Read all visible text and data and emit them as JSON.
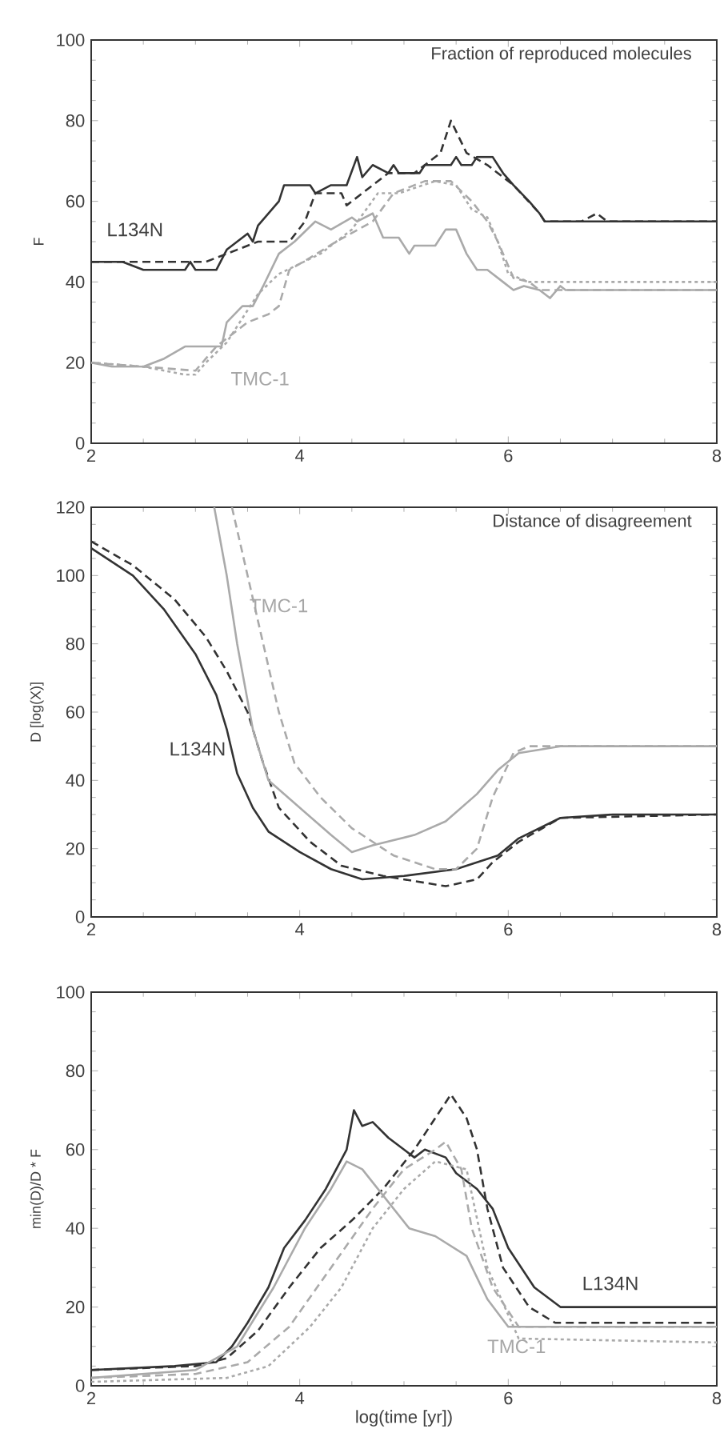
{
  "chart_data": [
    {
      "type": "line",
      "title": "Fraction of reproduced molecules",
      "ylabel": "F",
      "xlim": [
        2,
        8
      ],
      "xticks": [
        2,
        4,
        6,
        8
      ],
      "ylim": [
        0,
        100
      ],
      "yticks": [
        0,
        20,
        40,
        60,
        80,
        100
      ],
      "annotations": [
        "L134N",
        "TMC-1"
      ],
      "series": [
        {
          "color": "#333333",
          "line_style": "solid",
          "x": [
            2,
            2.3,
            2.5,
            2.9,
            2.95,
            3.0,
            3.2,
            3.3,
            3.4,
            3.5,
            3.55,
            3.6,
            3.7,
            3.8,
            3.85,
            4.1,
            4.15,
            4.3,
            4.45,
            4.55,
            4.6,
            4.7,
            4.85,
            4.9,
            4.95,
            5.15,
            5.2,
            5.45,
            5.5,
            5.55,
            5.65,
            5.7,
            5.85,
            5.95,
            6.05,
            6.2,
            6.3,
            6.35,
            8
          ],
          "values": [
            45,
            45,
            43,
            43,
            45,
            43,
            43,
            48,
            50,
            52,
            50,
            54,
            57,
            60,
            64,
            64,
            62,
            64,
            64,
            71,
            66,
            69,
            67,
            69,
            67,
            67,
            69,
            69,
            71,
            69,
            69,
            71,
            71,
            67,
            64,
            60,
            57,
            55,
            55
          ]
        },
        {
          "color": "#333333",
          "line_style": "dashed",
          "x": [
            2,
            2.9,
            3.1,
            3.4,
            3.6,
            3.9,
            4.05,
            4.15,
            4.4,
            4.45,
            4.6,
            4.7,
            4.85,
            5.1,
            5.35,
            5.45,
            5.6,
            5.8,
            6.05,
            6.3,
            6.35,
            6.7,
            6.85,
            6.95,
            8
          ],
          "values": [
            45,
            45,
            45,
            48,
            50,
            50,
            55,
            62,
            62,
            59,
            62,
            64,
            67,
            67,
            72,
            80,
            72,
            69,
            64,
            57,
            55,
            55,
            57,
            55,
            55
          ]
        },
        {
          "color": "#aaaaaa",
          "line_style": "solid",
          "x": [
            2,
            2.2,
            2.5,
            2.7,
            2.9,
            3.25,
            3.3,
            3.45,
            3.55,
            3.65,
            3.8,
            3.95,
            4.15,
            4.3,
            4.5,
            4.55,
            4.7,
            4.8,
            4.95,
            5.05,
            5.1,
            5.3,
            5.4,
            5.5,
            5.6,
            5.7,
            5.8,
            5.95,
            6.05,
            6.15,
            6.3,
            6.4,
            6.5,
            6.55,
            8
          ],
          "values": [
            20,
            19,
            19,
            21,
            24,
            24,
            30,
            34,
            34,
            39,
            47,
            50,
            55,
            53,
            56,
            55,
            57,
            51,
            51,
            47,
            49,
            49,
            53,
            53,
            47,
            43,
            43,
            40,
            38,
            39,
            38,
            36,
            39,
            38,
            38
          ]
        },
        {
          "color": "#aaaaaa",
          "line_style": "dashed",
          "x": [
            2,
            2.5,
            3.0,
            3.2,
            3.5,
            3.7,
            3.8,
            3.9,
            4.1,
            4.35,
            4.7,
            4.9,
            5.2,
            5.45,
            5.65,
            5.8,
            5.9,
            6.05,
            6.2,
            6.3,
            8
          ],
          "values": [
            20,
            19,
            18,
            24,
            30,
            32,
            34,
            43,
            46,
            50,
            55,
            62,
            65,
            65,
            60,
            55,
            50,
            41,
            40,
            38,
            38
          ]
        },
        {
          "color": "#aaaaaa",
          "line_style": "dotted",
          "x": [
            2,
            2.5,
            2.9,
            3.0,
            3.1,
            3.3,
            3.6,
            3.8,
            4.2,
            4.5,
            4.75,
            4.95,
            5.3,
            5.5,
            5.65,
            5.8,
            5.9,
            6.0,
            6.2,
            8
          ],
          "values": [
            20,
            19,
            17,
            17,
            20,
            25,
            37,
            42,
            47,
            53,
            62,
            62,
            65,
            64,
            58,
            56,
            50,
            42,
            40,
            40
          ]
        }
      ]
    },
    {
      "type": "line",
      "title": "Distance of disagreement",
      "ylabel": "D [log(X)]",
      "xlim": [
        2,
        8
      ],
      "xticks": [
        2,
        4,
        6,
        8
      ],
      "ylim": [
        0,
        120
      ],
      "yticks": [
        0,
        20,
        40,
        60,
        80,
        100,
        120
      ],
      "annotations": [
        "L134N",
        "TMC-1"
      ],
      "series": [
        {
          "color": "#333333",
          "line_style": "solid",
          "x": [
            2,
            2.4,
            2.7,
            3.0,
            3.2,
            3.3,
            3.4,
            3.55,
            3.7,
            4.0,
            4.3,
            4.6,
            5.0,
            5.5,
            5.9,
            6.1,
            6.5,
            7,
            8
          ],
          "values": [
            108,
            100,
            90,
            77,
            65,
            55,
            42,
            32,
            25,
            19,
            14,
            11,
            12,
            14,
            18,
            23,
            29,
            30,
            30
          ]
        },
        {
          "color": "#333333",
          "line_style": "dashed",
          "x": [
            2,
            2.4,
            2.8,
            3.1,
            3.3,
            3.5,
            3.65,
            3.8,
            4.1,
            4.4,
            4.8,
            5.2,
            5.4,
            5.7,
            5.85,
            6.1,
            6.5,
            8
          ],
          "values": [
            110,
            103,
            93,
            82,
            72,
            60,
            45,
            32,
            22,
            15,
            12,
            10,
            9,
            11,
            16,
            22,
            29,
            30
          ]
        },
        {
          "color": "#aaaaaa",
          "line_style": "solid",
          "x": [
            3.18,
            3.3,
            3.4,
            3.55,
            3.7,
            4.0,
            4.3,
            4.5,
            4.7,
            5.1,
            5.4,
            5.7,
            5.9,
            6.1,
            6.5,
            8
          ],
          "values": [
            120,
            100,
            80,
            55,
            40,
            32,
            24,
            19,
            21,
            24,
            28,
            36,
            43,
            48,
            50,
            50
          ]
        },
        {
          "color": "#aaaaaa",
          "line_style": "dashed",
          "x": [
            3.35,
            3.5,
            3.65,
            3.8,
            3.95,
            4.2,
            4.5,
            4.9,
            5.3,
            5.5,
            5.7,
            5.85,
            6.05,
            6.2,
            8
          ],
          "values": [
            120,
            100,
            80,
            60,
            45,
            35,
            26,
            18,
            14,
            14,
            20,
            35,
            48,
            50,
            50
          ]
        }
      ]
    },
    {
      "type": "line",
      "ylabel": "min(D)/D * F",
      "xlabel": "log(time [yr])",
      "xlim": [
        2,
        8
      ],
      "xticks": [
        2,
        4,
        6,
        8
      ],
      "ylim": [
        0,
        100
      ],
      "yticks": [
        0,
        20,
        40,
        60,
        80,
        100
      ],
      "annotations": [
        "L134N",
        "TMC-1"
      ],
      "series": [
        {
          "color": "#333333",
          "line_style": "solid",
          "x": [
            2,
            2.8,
            3.2,
            3.35,
            3.5,
            3.7,
            3.85,
            4.05,
            4.25,
            4.45,
            4.52,
            4.6,
            4.7,
            4.85,
            5.0,
            5.1,
            5.2,
            5.4,
            5.5,
            5.7,
            5.85,
            6.0,
            6.25,
            6.5,
            8
          ],
          "values": [
            4,
            5,
            6,
            10,
            16,
            25,
            35,
            42,
            50,
            60,
            70,
            66,
            67,
            63,
            60,
            58,
            60,
            58,
            54,
            50,
            45,
            35,
            25,
            20,
            20
          ]
        },
        {
          "color": "#333333",
          "line_style": "dashed",
          "x": [
            2,
            3,
            3.3,
            3.6,
            3.9,
            4.2,
            4.5,
            4.8,
            5.1,
            5.35,
            5.45,
            5.6,
            5.7,
            5.8,
            5.95,
            6.2,
            6.45,
            8
          ],
          "values": [
            4,
            5,
            7,
            14,
            25,
            35,
            42,
            50,
            60,
            70,
            74,
            68,
            60,
            45,
            30,
            20,
            16,
            16
          ]
        },
        {
          "color": "#aaaaaa",
          "line_style": "solid",
          "x": [
            2,
            3,
            3.4,
            3.75,
            4.05,
            4.3,
            4.45,
            4.6,
            4.75,
            4.9,
            5.05,
            5.3,
            5.6,
            5.8,
            6.0,
            6.5,
            8
          ],
          "values": [
            2,
            4,
            10,
            25,
            40,
            50,
            57,
            55,
            50,
            45,
            40,
            38,
            33,
            22,
            15,
            15,
            15
          ]
        },
        {
          "color": "#aaaaaa",
          "line_style": "dashed",
          "x": [
            2,
            3,
            3.5,
            3.9,
            4.3,
            4.7,
            5.0,
            5.3,
            5.4,
            5.55,
            5.65,
            5.85,
            6.1,
            8
          ],
          "values": [
            2,
            3,
            6,
            15,
            30,
            45,
            55,
            60,
            62,
            55,
            40,
            25,
            15,
            15
          ]
        },
        {
          "color": "#aaaaaa",
          "line_style": "dotted",
          "x": [
            2,
            3.3,
            3.7,
            4.1,
            4.4,
            4.7,
            5.0,
            5.3,
            5.6,
            5.8,
            6.1,
            8
          ],
          "values": [
            1,
            2,
            5,
            15,
            25,
            40,
            50,
            57,
            55,
            30,
            12,
            11
          ]
        }
      ]
    }
  ]
}
